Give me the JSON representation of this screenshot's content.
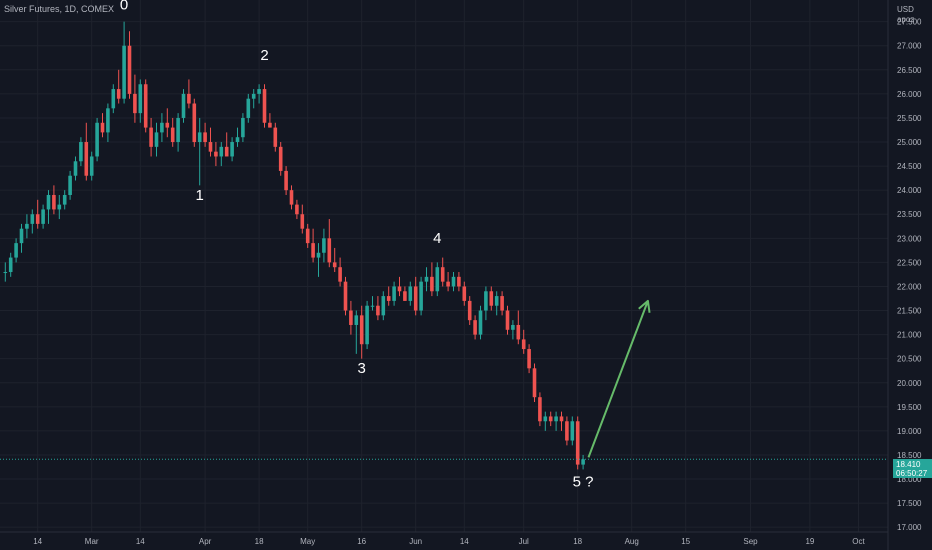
{
  "header": {
    "symbol_title": "Silver Futures, 1D, COMEX"
  },
  "price_scale": {
    "currency": "USD",
    "sublabel": "apoz"
  },
  "last_price": {
    "price": "18.410",
    "countdown": "06:50:27",
    "color": "#26a69a"
  },
  "colors": {
    "background": "#131722",
    "up": "#26a69a",
    "down": "#ef5350",
    "grid": "#1e222d",
    "arrow": "#66bb6a",
    "text": "#b2b5be"
  },
  "chart_data": {
    "type": "candlestick",
    "y_range": [
      16.9,
      27.95
    ],
    "y_ticks": [
      17.0,
      17.5,
      18.0,
      18.5,
      19.0,
      19.5,
      20.0,
      20.5,
      21.0,
      21.5,
      22.0,
      22.5,
      23.0,
      23.5,
      24.0,
      24.5,
      25.0,
      25.5,
      26.0,
      26.5,
      27.0,
      27.5
    ],
    "y_tick_labels": [
      "17.000",
      "17.500",
      "18.000",
      "18.500",
      "19.000",
      "19.500",
      "20.000",
      "20.500",
      "21.000",
      "21.500",
      "22.000",
      "22.500",
      "23.000",
      "23.500",
      "24.000",
      "24.500",
      "25.000",
      "25.500",
      "26.000",
      "26.500",
      "27.000",
      "27.500"
    ],
    "x_ticks": [
      {
        "label": "14",
        "bar": 6
      },
      {
        "label": "Mar",
        "bar": 16
      },
      {
        "label": "14",
        "bar": 25
      },
      {
        "label": "Apr",
        "bar": 37
      },
      {
        "label": "18",
        "bar": 47
      },
      {
        "label": "May",
        "bar": 56
      },
      {
        "label": "16",
        "bar": 66
      },
      {
        "label": "Jun",
        "bar": 76
      },
      {
        "label": "14",
        "bar": 85
      },
      {
        "label": "Jul",
        "bar": 96
      },
      {
        "label": "18",
        "bar": 106
      },
      {
        "label": "Aug",
        "bar": 116
      },
      {
        "label": "15",
        "bar": 126
      },
      {
        "label": "Sep",
        "bar": 138
      },
      {
        "label": "19",
        "bar": 149
      },
      {
        "label": "Oct",
        "bar": 158
      }
    ],
    "candles": [
      [
        22.3,
        22.5,
        22.1,
        22.3
      ],
      [
        22.3,
        22.7,
        22.2,
        22.6
      ],
      [
        22.6,
        23.0,
        22.5,
        22.9
      ],
      [
        22.9,
        23.3,
        22.7,
        23.2
      ],
      [
        23.2,
        23.5,
        23.0,
        23.3
      ],
      [
        23.3,
        23.6,
        23.1,
        23.5
      ],
      [
        23.5,
        23.8,
        23.2,
        23.3
      ],
      [
        23.3,
        23.7,
        23.2,
        23.6
      ],
      [
        23.6,
        24.0,
        23.3,
        23.9
      ],
      [
        23.9,
        24.1,
        23.5,
        23.6
      ],
      [
        23.6,
        23.9,
        23.4,
        23.7
      ],
      [
        23.7,
        24.0,
        23.6,
        23.9
      ],
      [
        23.9,
        24.4,
        23.8,
        24.3
      ],
      [
        24.3,
        24.7,
        24.2,
        24.6
      ],
      [
        24.6,
        25.1,
        24.5,
        25.0
      ],
      [
        25.0,
        25.4,
        24.2,
        24.3
      ],
      [
        24.3,
        24.8,
        24.2,
        24.7
      ],
      [
        24.7,
        25.5,
        24.6,
        25.4
      ],
      [
        25.4,
        25.6,
        25.1,
        25.2
      ],
      [
        25.2,
        25.8,
        25.0,
        25.7
      ],
      [
        25.7,
        26.2,
        25.6,
        26.1
      ],
      [
        26.1,
        26.5,
        25.8,
        25.9
      ],
      [
        25.9,
        27.5,
        25.8,
        27.0
      ],
      [
        27.0,
        27.3,
        25.9,
        26.0
      ],
      [
        26.0,
        26.4,
        25.4,
        25.6
      ],
      [
        25.6,
        26.3,
        25.4,
        26.2
      ],
      [
        26.2,
        26.3,
        25.2,
        25.3
      ],
      [
        25.3,
        25.5,
        24.7,
        24.9
      ],
      [
        24.9,
        25.4,
        24.7,
        25.2
      ],
      [
        25.2,
        25.6,
        25.0,
        25.4
      ],
      [
        25.4,
        25.7,
        25.1,
        25.3
      ],
      [
        25.3,
        25.5,
        24.9,
        25.0
      ],
      [
        25.0,
        25.6,
        24.8,
        25.5
      ],
      [
        25.5,
        26.1,
        25.4,
        26.0
      ],
      [
        26.0,
        26.3,
        25.7,
        25.8
      ],
      [
        25.8,
        25.9,
        24.9,
        25.0
      ],
      [
        25.0,
        25.5,
        24.1,
        25.2
      ],
      [
        25.2,
        25.4,
        24.9,
        25.0
      ],
      [
        25.0,
        25.3,
        24.7,
        24.8
      ],
      [
        24.8,
        25.0,
        24.5,
        24.7
      ],
      [
        24.7,
        25.0,
        24.5,
        24.9
      ],
      [
        24.9,
        25.2,
        24.7,
        24.7
      ],
      [
        24.7,
        25.1,
        24.6,
        25.0
      ],
      [
        25.0,
        25.3,
        24.9,
        25.1
      ],
      [
        25.1,
        25.6,
        25.0,
        25.5
      ],
      [
        25.5,
        26.0,
        25.4,
        25.9
      ],
      [
        25.9,
        26.1,
        25.7,
        26.0
      ],
      [
        26.0,
        26.2,
        25.8,
        26.1
      ],
      [
        26.1,
        26.2,
        25.3,
        25.4
      ],
      [
        25.4,
        25.6,
        25.3,
        25.3
      ],
      [
        25.3,
        25.4,
        24.8,
        24.9
      ],
      [
        24.9,
        25.0,
        24.3,
        24.4
      ],
      [
        24.4,
        24.5,
        23.9,
        24.0
      ],
      [
        24.0,
        24.1,
        23.6,
        23.7
      ],
      [
        23.7,
        23.8,
        23.4,
        23.5
      ],
      [
        23.5,
        23.7,
        23.1,
        23.2
      ],
      [
        23.2,
        23.3,
        22.8,
        22.9
      ],
      [
        22.9,
        23.2,
        22.5,
        22.6
      ],
      [
        22.6,
        22.9,
        22.2,
        22.7
      ],
      [
        22.7,
        23.2,
        22.5,
        23.0
      ],
      [
        23.0,
        23.4,
        22.4,
        22.5
      ],
      [
        22.5,
        22.8,
        22.3,
        22.4
      ],
      [
        22.4,
        22.6,
        22.0,
        22.1
      ],
      [
        22.1,
        22.2,
        21.4,
        21.5
      ],
      [
        21.5,
        21.7,
        21.0,
        21.2
      ],
      [
        21.2,
        21.5,
        20.6,
        21.4
      ],
      [
        21.4,
        21.6,
        20.5,
        20.8
      ],
      [
        20.8,
        21.7,
        20.7,
        21.6
      ],
      [
        21.6,
        21.8,
        21.5,
        21.6
      ],
      [
        21.6,
        21.8,
        21.3,
        21.4
      ],
      [
        21.4,
        21.9,
        21.3,
        21.8
      ],
      [
        21.8,
        22.0,
        21.6,
        21.7
      ],
      [
        21.7,
        22.1,
        21.6,
        22.0
      ],
      [
        22.0,
        22.2,
        21.8,
        21.9
      ],
      [
        21.9,
        22.0,
        21.7,
        21.7
      ],
      [
        21.7,
        22.1,
        21.6,
        22.0
      ],
      [
        22.0,
        22.2,
        21.4,
        21.5
      ],
      [
        21.5,
        22.2,
        21.4,
        22.1
      ],
      [
        22.1,
        22.4,
        21.9,
        22.2
      ],
      [
        22.2,
        22.5,
        21.8,
        21.9
      ],
      [
        21.9,
        22.5,
        21.8,
        22.4
      ],
      [
        22.4,
        22.6,
        22.0,
        22.1
      ],
      [
        22.1,
        22.3,
        21.9,
        22.0
      ],
      [
        22.0,
        22.3,
        21.9,
        22.2
      ],
      [
        22.2,
        22.3,
        21.9,
        22.0
      ],
      [
        22.0,
        22.1,
        21.6,
        21.7
      ],
      [
        21.7,
        21.8,
        21.2,
        21.3
      ],
      [
        21.3,
        21.4,
        20.9,
        21.0
      ],
      [
        21.0,
        21.6,
        20.9,
        21.5
      ],
      [
        21.5,
        22.0,
        21.3,
        21.9
      ],
      [
        21.9,
        22.0,
        21.5,
        21.6
      ],
      [
        21.6,
        21.9,
        21.4,
        21.8
      ],
      [
        21.8,
        21.9,
        21.4,
        21.5
      ],
      [
        21.5,
        21.6,
        21.0,
        21.1
      ],
      [
        21.1,
        21.3,
        20.9,
        21.2
      ],
      [
        21.2,
        21.5,
        20.8,
        20.9
      ],
      [
        20.9,
        21.1,
        20.6,
        20.7
      ],
      [
        20.7,
        20.8,
        20.2,
        20.3
      ],
      [
        20.3,
        20.4,
        19.6,
        19.7
      ],
      [
        19.7,
        19.8,
        19.1,
        19.2
      ],
      [
        19.2,
        19.4,
        19.0,
        19.3
      ],
      [
        19.3,
        19.4,
        19.1,
        19.2
      ],
      [
        19.2,
        19.4,
        19.0,
        19.3
      ],
      [
        19.3,
        19.4,
        19.0,
        19.2
      ],
      [
        19.2,
        19.3,
        18.7,
        18.8
      ],
      [
        18.8,
        19.3,
        18.7,
        19.2
      ],
      [
        19.2,
        19.3,
        18.2,
        18.3
      ],
      [
        18.3,
        18.5,
        18.2,
        18.41
      ]
    ],
    "wave_labels": [
      {
        "text": "0",
        "bar": 22,
        "price": 27.75
      },
      {
        "text": "1",
        "bar": 36,
        "price": 23.8
      },
      {
        "text": "2",
        "bar": 48,
        "price": 26.7
      },
      {
        "text": "3",
        "bar": 66,
        "price": 20.2
      },
      {
        "text": "4",
        "bar": 80,
        "price": 22.9
      },
      {
        "text": "5 ?",
        "bar": 107,
        "price": 17.85
      }
    ],
    "projection_arrow": {
      "from": {
        "bar": 108,
        "price": 18.45
      },
      "to": {
        "bar": 119,
        "price": 21.7
      }
    }
  }
}
